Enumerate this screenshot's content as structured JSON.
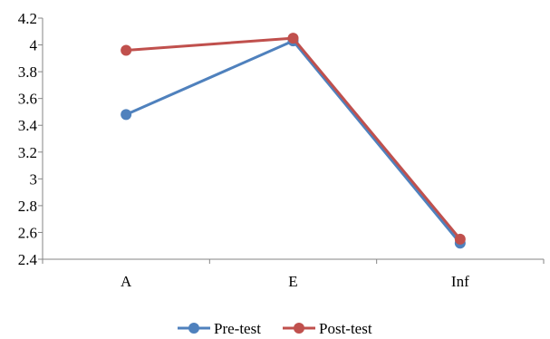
{
  "chart_data": {
    "type": "line",
    "title": "",
    "xlabel": "",
    "ylabel": "",
    "categories": [
      "A",
      "E",
      "Inf"
    ],
    "series": [
      {
        "name": "Pre-test",
        "values": [
          3.48,
          4.03,
          2.52
        ],
        "color": "#4F81BD"
      },
      {
        "name": "Post-test",
        "values": [
          3.96,
          4.05,
          2.55
        ],
        "color": "#C0504D"
      }
    ],
    "ylim": [
      2.4,
      4.2
    ],
    "yticks": [
      "2.4",
      "2.6",
      "2.8",
      "3",
      "3.2",
      "3.4",
      "3.6",
      "3.8",
      "4",
      "4.2"
    ],
    "grid": false,
    "legend_position": "bottom"
  }
}
